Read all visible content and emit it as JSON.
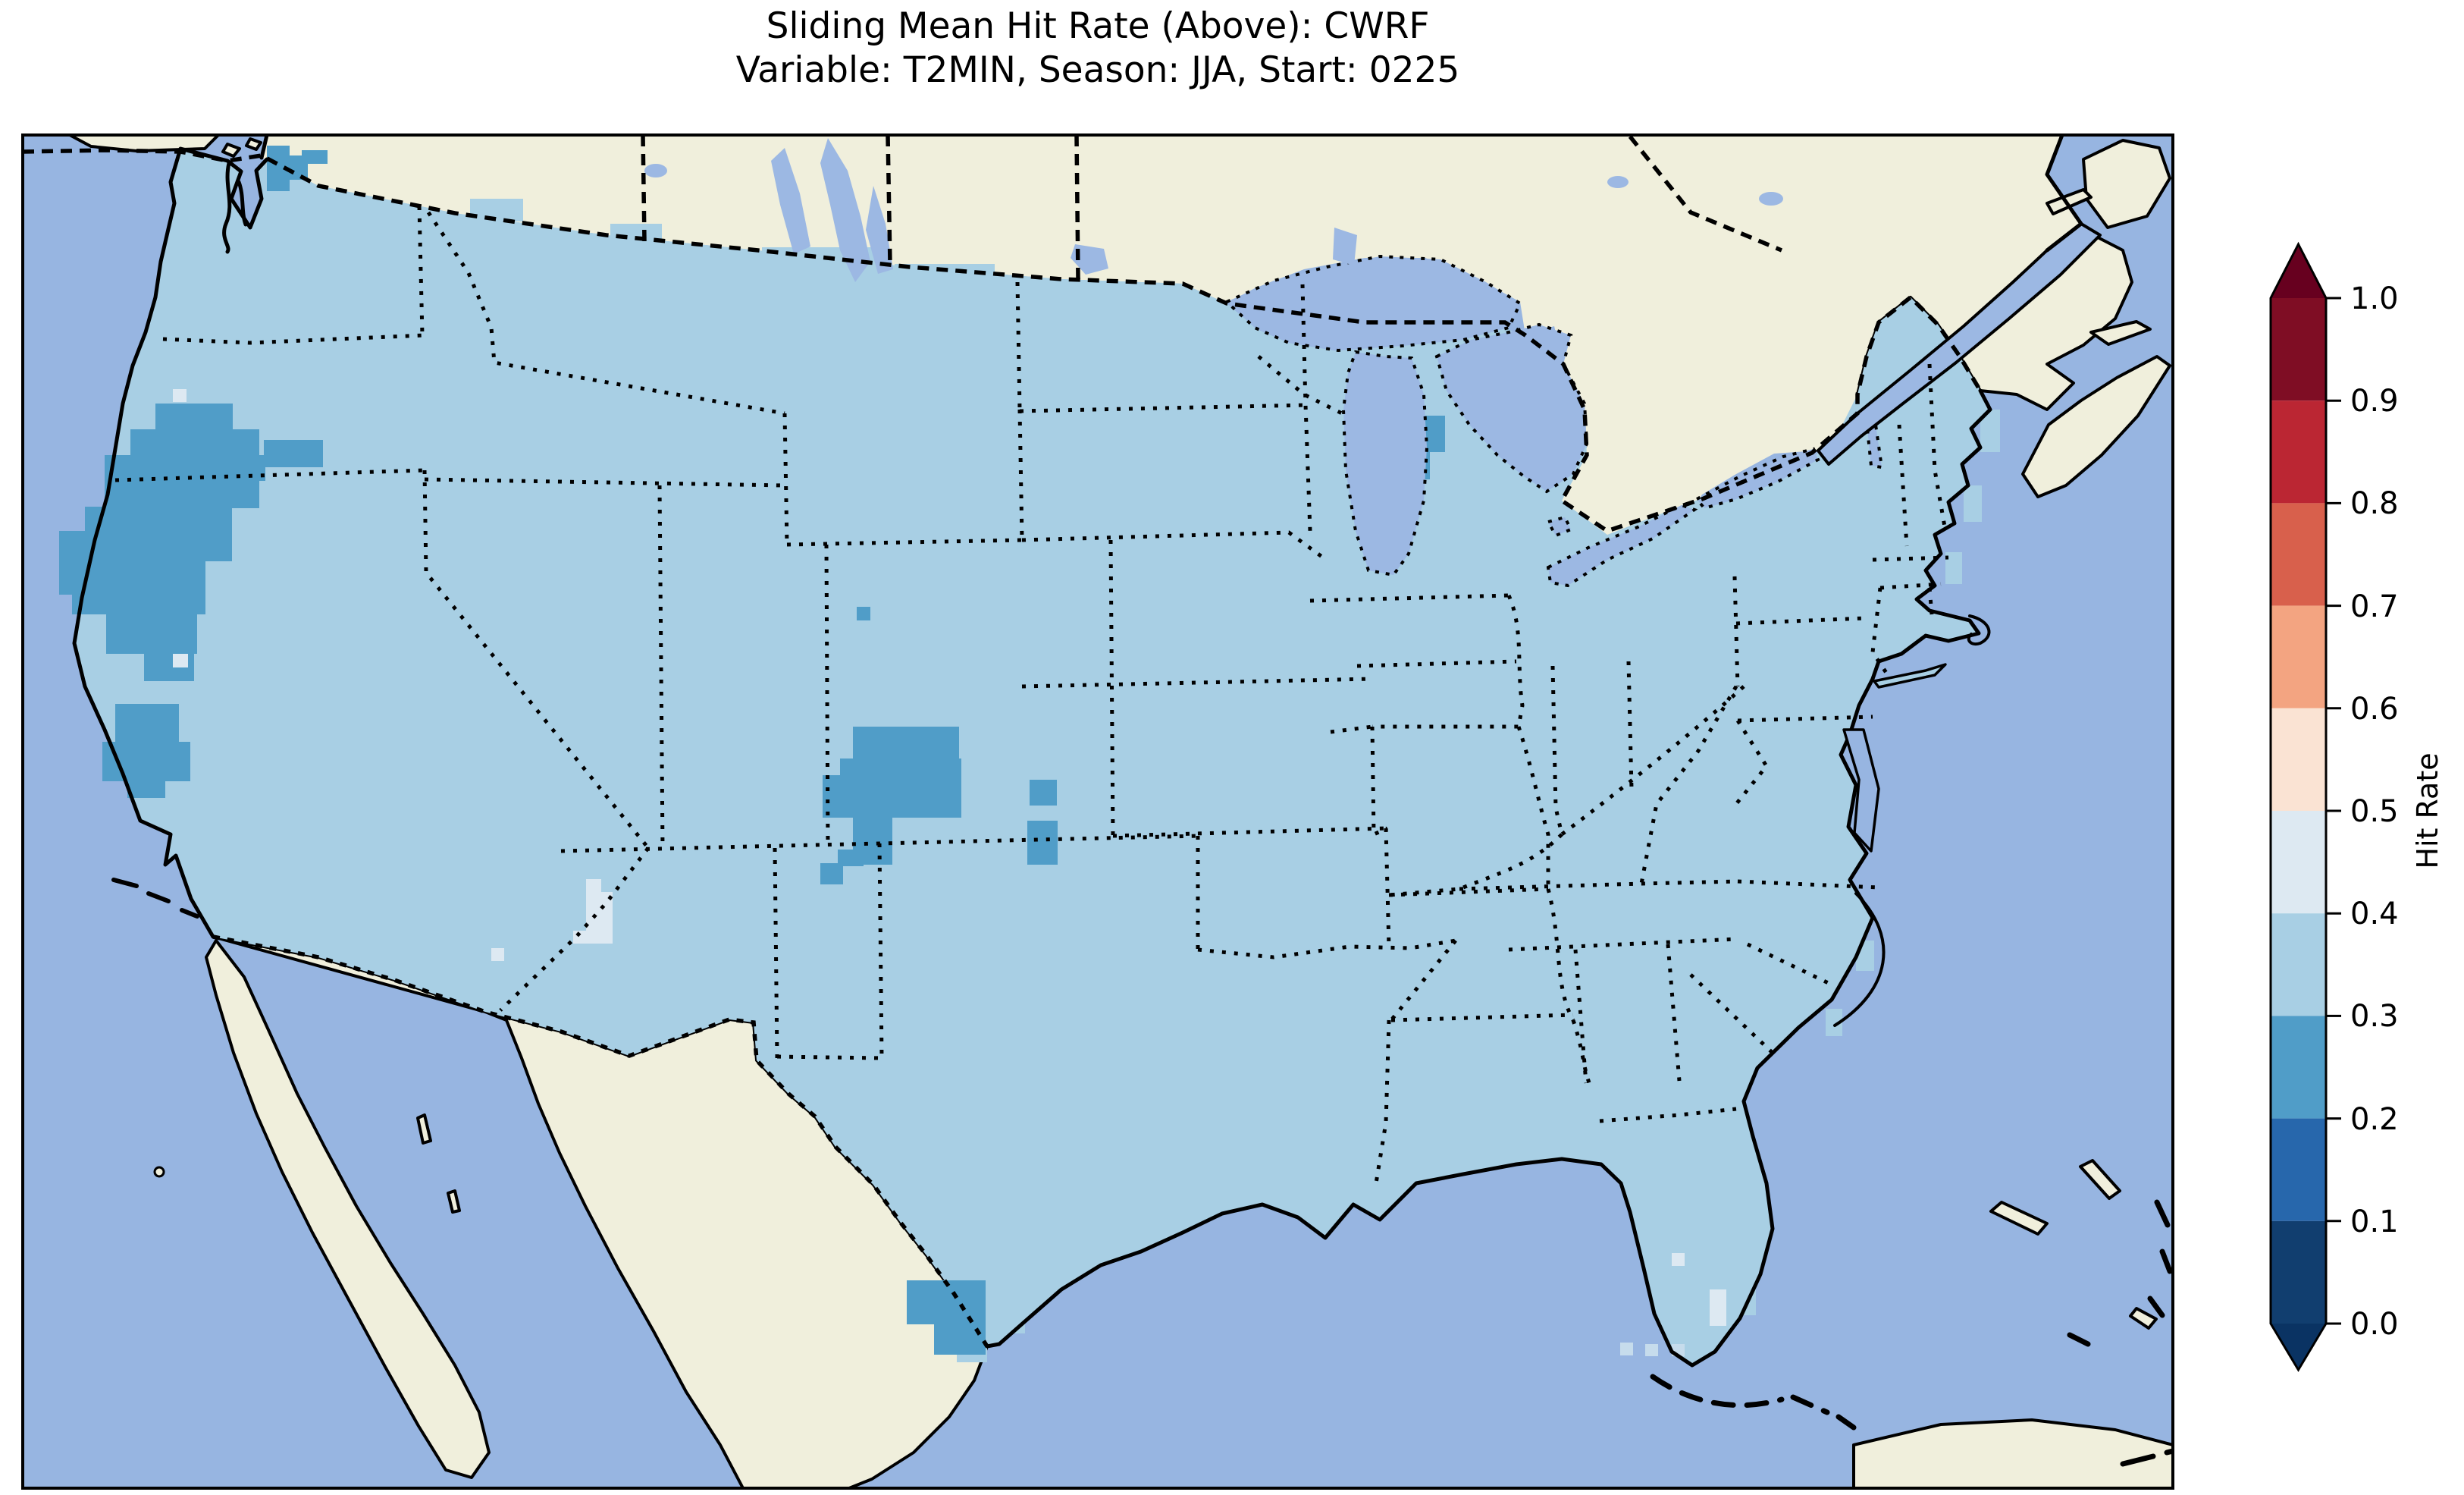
{
  "title": {
    "line1": "Sliding Mean Hit Rate (Above): CWRF",
    "line2": "Variable: T2MIN, Season: JJA, Start: 0225"
  },
  "colorbar": {
    "label": "Hit Rate",
    "ticks": [
      "1.0",
      "0.9",
      "0.8",
      "0.7",
      "0.6",
      "0.5",
      "0.4",
      "0.3",
      "0.2",
      "0.1",
      "0.0"
    ],
    "extend": "both"
  },
  "colors": {
    "ocean": "#97b5e1",
    "land": "#f0efdc",
    "lake": "#9cb8e3",
    "line": "#000000",
    "ocean_cell": "#c6dcec",
    "under": "#0a3363",
    "over": "#67001f",
    "cb0": "#113e6f",
    "cb1": "#2767ac",
    "cb2": "#509dc8",
    "cb3": "#a8cfe4",
    "cb4": "#dde9f2",
    "cb5": "#fae3d3",
    "cb6": "#f3a481",
    "cb7": "#d8604c",
    "cb8": "#bb2633",
    "cb9": "#7f0d24"
  },
  "map": {
    "base_bin": "0.3-0.4",
    "patch_groups": [
      {
        "name": "hitrate-0.2-0.3",
        "layer": "bin2",
        "color": "cb2",
        "cells": [
          [
            352,
            192,
            30,
            60
          ],
          [
            378,
            205,
            28,
            32
          ],
          [
            398,
            198,
            34,
            18
          ],
          [
            205,
            532,
            102,
            34
          ],
          [
            172,
            566,
            170,
            68
          ],
          [
            138,
            600,
            204,
            70
          ],
          [
            112,
            668,
            194,
            72
          ],
          [
            95,
            740,
            176,
            70
          ],
          [
            140,
            810,
            120,
            52
          ],
          [
            190,
            862,
            66,
            36
          ],
          [
            348,
            580,
            78,
            36
          ],
          [
            310,
            600,
            40,
            34
          ],
          [
            78,
            700,
            40,
            84
          ],
          [
            152,
            928,
            84,
            68
          ],
          [
            135,
            978,
            116,
            52
          ],
          [
            168,
            1030,
            50,
            22
          ],
          [
            1125,
            958,
            140,
            64
          ],
          [
            1108,
            1000,
            160,
            78
          ],
          [
            1085,
            1022,
            46,
            56
          ],
          [
            1125,
            1078,
            52,
            62
          ],
          [
            1105,
            1120,
            34,
            22
          ],
          [
            1082,
            1138,
            30,
            28
          ],
          [
            1358,
            1028,
            36,
            34
          ],
          [
            1355,
            1082,
            40,
            58
          ],
          [
            1130,
            800,
            18,
            18
          ],
          [
            1828,
            548,
            78,
            48
          ],
          [
            1842,
            594,
            44,
            38
          ],
          [
            1196,
            1688,
            104,
            58
          ],
          [
            1232,
            1744,
            68,
            42
          ]
        ]
      },
      {
        "name": "hitrate-0.4-0.5",
        "layer": "bin4",
        "color": "cb4",
        "cells": [
          [
            773,
            1159,
            20,
            17
          ],
          [
            773,
            1176,
            35,
            68
          ],
          [
            756,
            1227,
            18,
            17
          ],
          [
            648,
            1250,
            17,
            17
          ],
          [
            228,
            513,
            18,
            17
          ],
          [
            228,
            862,
            20,
            18
          ],
          [
            2205,
            1652,
            17,
            17
          ],
          [
            2255,
            1700,
            22,
            48
          ]
        ]
      },
      {
        "name": "ocean-grid-cell",
        "layer": "oceancells",
        "color": "ocean_cell",
        "cells": [
          [
            2137,
            1770,
            17,
            17
          ],
          [
            2170,
            1772,
            17,
            16
          ],
          [
            2205,
            1772,
            17,
            16
          ]
        ]
      },
      {
        "name": "hitrate-0.3-0.4-overshoot",
        "layer": "bin3x",
        "color": "cb3",
        "cells": [
          [
            620,
            262,
            70,
            30
          ],
          [
            805,
            295,
            68,
            32
          ],
          [
            1005,
            326,
            168,
            30
          ],
          [
            1180,
            348,
            132,
            28
          ],
          [
            2612,
            540,
            26,
            56
          ],
          [
            2590,
            640,
            24,
            48
          ],
          [
            2566,
            728,
            22,
            42
          ],
          [
            2448,
            1240,
            24,
            40
          ],
          [
            2408,
            1330,
            22,
            36
          ],
          [
            1310,
            1718,
            42,
            40
          ],
          [
            1262,
            1762,
            40,
            34
          ],
          [
            2290,
            1690,
            26,
            44
          ]
        ]
      }
    ]
  }
}
